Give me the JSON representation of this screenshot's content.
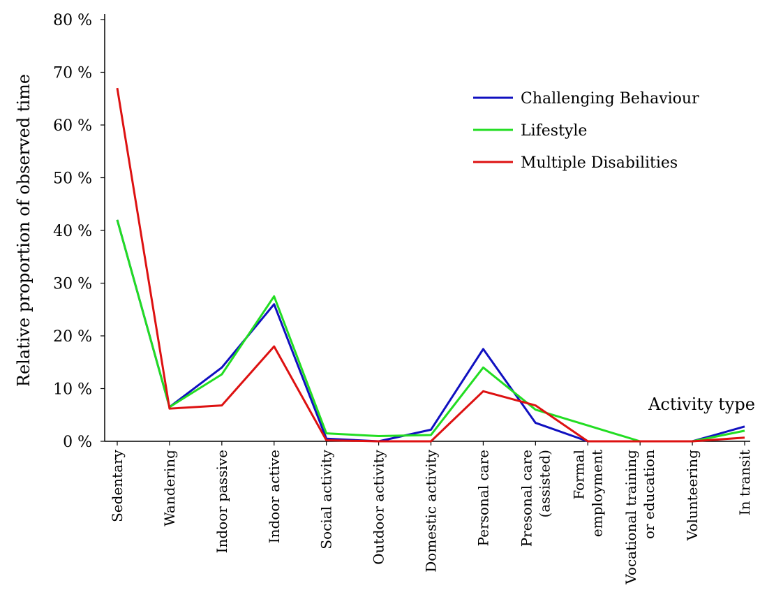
{
  "chart_data": {
    "type": "line",
    "ylabel": "Relative proportion of observed time",
    "xlabel": "Activity type",
    "ylim": [
      0,
      80
    ],
    "y_ticks": [
      "0 %",
      "10 %",
      "20 %",
      "30 %",
      "40 %",
      "50 %",
      "60 %",
      "70 %",
      "80 %"
    ],
    "categories": [
      "Sedentary",
      "Wandering",
      "Indoor passive",
      "Indoor active",
      "Social activity",
      "Outdoor activity",
      "Domestic activity",
      "Personal care",
      "Presonal care\n(assisted)",
      "Formal\nemployment",
      "Vocational training\nor education",
      "Volunteering",
      "In transit"
    ],
    "series": [
      {
        "name": "Challenging Behaviour",
        "color": "#1010c0",
        "values": [
          42,
          6.5,
          14,
          26,
          0.5,
          0,
          2.2,
          17.5,
          3.5,
          0,
          0,
          0,
          2.8
        ]
      },
      {
        "name": "Lifestyle",
        "color": "#22dd22",
        "values": [
          42,
          6.5,
          12.7,
          27.5,
          1.5,
          1,
          1.2,
          14,
          6,
          3,
          0,
          0,
          2
        ]
      },
      {
        "name": "Multiple Disabilities",
        "color": "#dd1111",
        "values": [
          67,
          6.2,
          6.8,
          18,
          0.2,
          0,
          0,
          9.5,
          6.8,
          0,
          0,
          0,
          0.7
        ]
      }
    ],
    "legend_position": "top-right",
    "grid": false
  }
}
